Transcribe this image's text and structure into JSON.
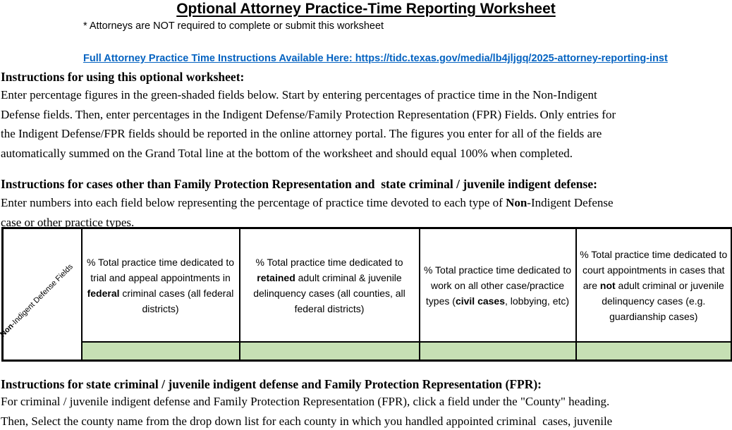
{
  "colors": {
    "link_blue": "#0563C1",
    "input_field_green": "#C6E0B4",
    "table_border": "#000000"
  },
  "header": {
    "title": "Optional Attorney Practice-Time Reporting Worksheet",
    "note": "* Attorneys are NOT required to complete or submit this worksheet",
    "instructions_link": "Full Attorney Practice Time Instructions Available Here: https://tidc.texas.gov/media/lb4jljgq/2025-attorney-reporting-inst"
  },
  "sections": {
    "usage": {
      "heading": "Instructions for using this optional worksheet:",
      "body": "Enter percentage figures in the green-shaded fields below. Start by entering percentages of practice time in the Non-Indigent\nDefense fields. Then, enter percentages in the Indigent Defense/Family Protection Representation (FPR) Fields. Only entries for\nthe Indigent Defense/FPR fields should be reported in the online attorney portal. The figures you enter for all of the fields are\nautomatically summed on the Grand Total line at the bottom of the worksheet and should equal 100% when completed."
    },
    "non_indigent": {
      "heading": "Instructions for cases other than Family Protection Representation and  state criminal / juvenile indigent defense:",
      "body_rich": [
        {
          "t": "Enter numbers into each field below representing the percentage of practice time devoted to each type of "
        },
        {
          "t": "Non",
          "b": true
        },
        {
          "t": "-Indigent Defense\ncase or other practice types."
        }
      ]
    },
    "fpr": {
      "heading": "Instructions for state criminal / juvenile indigent defense and Family Protection Representation (FPR):",
      "body": "For criminal / juvenile indigent defense and Family Protection Representation (FPR), click a field under the \"County\" heading.\nThen, Select the county name from the drop down list for each county in which you handled appointed criminal  cases, juvenile"
    }
  },
  "table": {
    "row_label_rich": [
      {
        "t": "Non",
        "b": true
      },
      {
        "t": "-Indigent Defense Fields"
      }
    ],
    "columns": [
      {
        "header_rich": [
          {
            "t": "% Total practice time dedicated to trial and appeal appointments in "
          },
          {
            "t": "federal",
            "b": true
          },
          {
            "t": " criminal cases (all federal districts)"
          }
        ],
        "value": ""
      },
      {
        "header_rich": [
          {
            "t": "% Total practice time dedicated to "
          },
          {
            "t": "retained",
            "b": true
          },
          {
            "t": " adult criminal & juvenile delinquency cases (all counties, all federal districts)"
          }
        ],
        "value": ""
      },
      {
        "header_rich": [
          {
            "t": "% Total practice time dedicated to work on all other case/practice types ("
          },
          {
            "t": "civil cases",
            "b": true
          },
          {
            "t": ", lobbying, etc)"
          }
        ],
        "value": ""
      },
      {
        "header_rich": [
          {
            "t": "% Total practice time dedicated to court appointments in cases that are "
          },
          {
            "t": "not",
            "b": true
          },
          {
            "t": " adult criminal or juvenile delinquency cases (e.g. guardianship cases)"
          }
        ],
        "value": ""
      }
    ]
  }
}
